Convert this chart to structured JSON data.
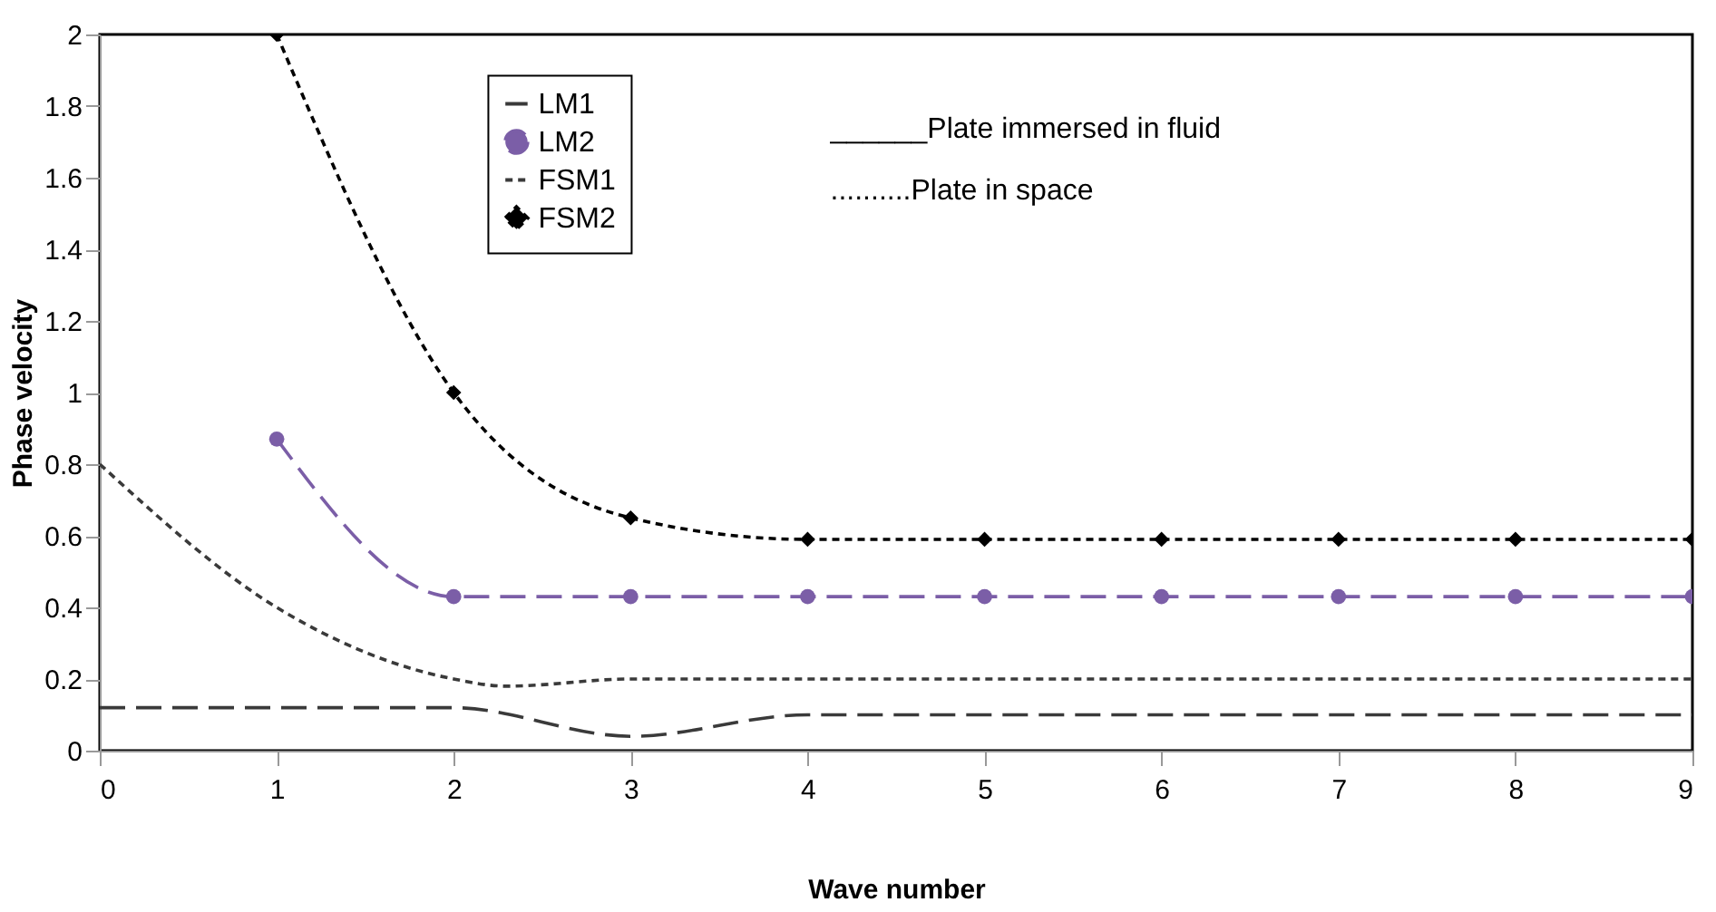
{
  "chart_data": {
    "type": "line",
    "xlabel": "Wave number",
    "ylabel": "Phase velocity",
    "xlim": [
      0,
      9
    ],
    "xticks": [
      0,
      1,
      2,
      3,
      4,
      5,
      6,
      7,
      8,
      9
    ],
    "ylim": [
      0,
      2
    ],
    "yticks": [
      0,
      0.2,
      0.4,
      0.6,
      0.8,
      1,
      1.2,
      1.4,
      1.6,
      1.8,
      2
    ],
    "grid": false,
    "legend": "top",
    "annotations": [
      "______Plate immersed in fluid",
      "..........Plate in space"
    ],
    "series": [
      {
        "name": "LM1",
        "color": "#3a3a3a",
        "line_style": "dashed",
        "marker": "none",
        "x": [
          0,
          1,
          2,
          3,
          4,
          5,
          6,
          7,
          8,
          9
        ],
        "values": [
          0.12,
          0.12,
          0.12,
          0.04,
          0.1,
          0.1,
          0.1,
          0.1,
          0.1,
          0.1
        ]
      },
      {
        "name": "LM2",
        "color": "#7b5ea7",
        "line_style": "dashed",
        "marker": "circle",
        "x": [
          1,
          2,
          3,
          4,
          5,
          6,
          7,
          8,
          9
        ],
        "values": [
          0.87,
          0.43,
          0.43,
          0.43,
          0.43,
          0.43,
          0.43,
          0.43,
          0.43
        ]
      },
      {
        "name": "FSM1",
        "color": "#3a3a3a",
        "line_style": "dotted",
        "marker": "none",
        "x": [
          0,
          1,
          2,
          2.3,
          3,
          4,
          5,
          6,
          7,
          8,
          9
        ],
        "values": [
          0.8,
          0.4,
          0.2,
          0.18,
          0.2,
          0.2,
          0.2,
          0.2,
          0.2,
          0.2,
          0.2
        ]
      },
      {
        "name": "FSM2",
        "color": "#000000",
        "line_style": "dotted",
        "marker": "diamond",
        "x": [
          1,
          2,
          3,
          4,
          5,
          6,
          7,
          8,
          9
        ],
        "values": [
          2.0,
          1.0,
          0.65,
          0.59,
          0.59,
          0.59,
          0.59,
          0.59,
          0.59
        ]
      }
    ]
  }
}
